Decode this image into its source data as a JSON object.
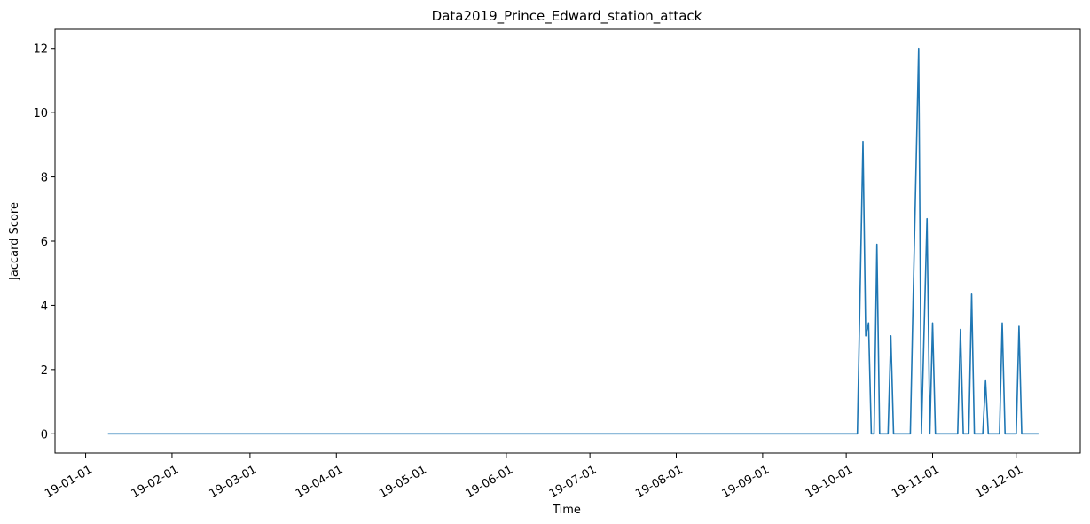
{
  "chart_data": {
    "type": "line",
    "title": "Data2019_Prince_Edward_station_attack",
    "xlabel": "Time",
    "ylabel": "Jaccard Score",
    "x_range": [
      "2018-12-21",
      "2019-12-24"
    ],
    "ylim": [
      -0.6,
      12.6
    ],
    "grid": false,
    "line_color": "#1f77b4",
    "x_ticks": [
      {
        "date": "2019-01-01",
        "label": "19-01-01"
      },
      {
        "date": "2019-02-01",
        "label": "19-02-01"
      },
      {
        "date": "2019-03-01",
        "label": "19-03-01"
      },
      {
        "date": "2019-04-01",
        "label": "19-04-01"
      },
      {
        "date": "2019-05-01",
        "label": "19-05-01"
      },
      {
        "date": "2019-06-01",
        "label": "19-06-01"
      },
      {
        "date": "2019-07-01",
        "label": "19-07-01"
      },
      {
        "date": "2019-08-01",
        "label": "19-08-01"
      },
      {
        "date": "2019-09-01",
        "label": "19-09-01"
      },
      {
        "date": "2019-10-01",
        "label": "19-10-01"
      },
      {
        "date": "2019-11-01",
        "label": "19-11-01"
      },
      {
        "date": "2019-12-01",
        "label": "19-12-01"
      }
    ],
    "y_ticks": [
      {
        "value": 0,
        "label": "0"
      },
      {
        "value": 2,
        "label": "2"
      },
      {
        "value": 4,
        "label": "4"
      },
      {
        "value": 6,
        "label": "6"
      },
      {
        "value": 8,
        "label": "8"
      },
      {
        "value": 10,
        "label": "10"
      },
      {
        "value": 12,
        "label": "12"
      }
    ],
    "series": [
      {
        "points": [
          [
            "2019-01-09",
            0
          ],
          [
            "2019-10-05",
            0
          ],
          [
            "2019-10-07",
            9.1
          ],
          [
            "2019-10-08",
            3.05
          ],
          [
            "2019-10-09",
            3.45
          ],
          [
            "2019-10-10",
            0
          ],
          [
            "2019-10-11",
            0
          ],
          [
            "2019-10-12",
            5.9
          ],
          [
            "2019-10-13",
            0
          ],
          [
            "2019-10-16",
            0
          ],
          [
            "2019-10-17",
            3.05
          ],
          [
            "2019-10-18",
            0
          ],
          [
            "2019-10-24",
            0
          ],
          [
            "2019-10-25",
            4.1
          ],
          [
            "2019-10-27",
            12.0
          ],
          [
            "2019-10-28",
            0
          ],
          [
            "2019-10-30",
            6.7
          ],
          [
            "2019-10-31",
            0
          ],
          [
            "2019-11-01",
            3.45
          ],
          [
            "2019-11-02",
            0
          ],
          [
            "2019-11-10",
            0
          ],
          [
            "2019-11-11",
            3.25
          ],
          [
            "2019-11-12",
            0
          ],
          [
            "2019-11-14",
            0
          ],
          [
            "2019-11-15",
            4.35
          ],
          [
            "2019-11-16",
            0
          ],
          [
            "2019-11-19",
            0
          ],
          [
            "2019-11-20",
            1.65
          ],
          [
            "2019-11-21",
            0
          ],
          [
            "2019-11-25",
            0
          ],
          [
            "2019-11-26",
            3.45
          ],
          [
            "2019-11-27",
            0
          ],
          [
            "2019-12-01",
            0
          ],
          [
            "2019-12-02",
            3.35
          ],
          [
            "2019-12-03",
            0
          ],
          [
            "2019-12-09",
            0
          ]
        ]
      }
    ]
  }
}
